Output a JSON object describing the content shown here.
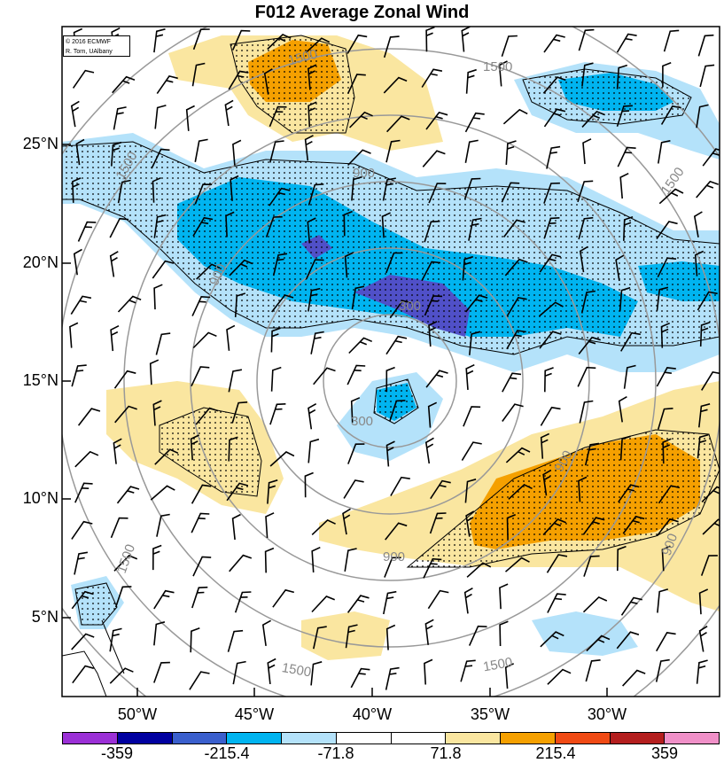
{
  "title": "F012 Average Zonal Wind",
  "credit": [
    "© 2016 ECMWF",
    "R. Torn, UAlbany"
  ],
  "latitude_labels": [
    "25°N",
    "20°N",
    "15°N",
    "10°N",
    "5°N"
  ],
  "longitude_labels": [
    "50°W",
    "45°W",
    "40°W",
    "35°W",
    "30°W"
  ],
  "colorbar": {
    "colors": [
      "#9b30d6",
      "#0000a0",
      "#3a5fcd",
      "#00b4f0",
      "#b4e2fa",
      "#ffffff",
      "#ffffff",
      "#fae6a0",
      "#f5a000",
      "#f04a14",
      "#b41e1e",
      "#f090c8"
    ],
    "labels": [
      "-359",
      "-215.4",
      "-71.8",
      "71.8",
      "215.4",
      "359"
    ]
  },
  "contour_labels": [
    "1500",
    "1500",
    "1500",
    "1500",
    "1500",
    "1500",
    "1500",
    "900",
    "900",
    "900",
    "900",
    "900",
    "300",
    "300"
  ],
  "shading_colors": {
    "light_blue": "#b4e2fa",
    "medium_blue": "#00b4f0",
    "dark_blue": "#3a5fcd",
    "navy": "#5050c8",
    "yellow": "#fae6a0",
    "orange": "#f5a000"
  }
}
